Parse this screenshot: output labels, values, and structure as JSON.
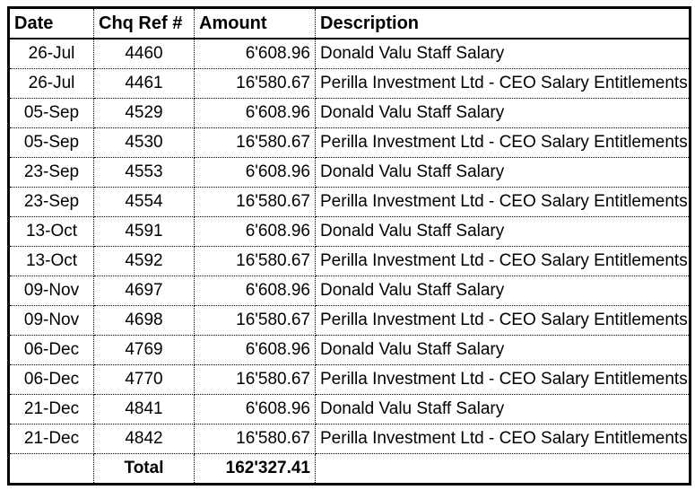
{
  "table": {
    "headers": {
      "date": "Date",
      "chq_ref": "Chq Ref #",
      "amount": "Amount",
      "description": "Description"
    },
    "rows": [
      {
        "date": "26-Jul",
        "chq_ref": "4460",
        "amount": "6'608.96",
        "description": "Donald Valu Staff Salary"
      },
      {
        "date": "26-Jul",
        "chq_ref": "4461",
        "amount": "16'580.67",
        "description": "Perilla Investment Ltd - CEO Salary Entitlements"
      },
      {
        "date": "05-Sep",
        "chq_ref": "4529",
        "amount": "6'608.96",
        "description": "Donald Valu Staff Salary"
      },
      {
        "date": "05-Sep",
        "chq_ref": "4530",
        "amount": "16'580.67",
        "description": "Perilla Investment Ltd - CEO Salary Entitlements"
      },
      {
        "date": "23-Sep",
        "chq_ref": "4553",
        "amount": "6'608.96",
        "description": "Donald Valu Staff Salary"
      },
      {
        "date": "23-Sep",
        "chq_ref": "4554",
        "amount": "16'580.67",
        "description": "Perilla Investment Ltd - CEO Salary Entitlements"
      },
      {
        "date": "13-Oct",
        "chq_ref": "4591",
        "amount": "6'608.96",
        "description": "Donald Valu Staff Salary"
      },
      {
        "date": "13-Oct",
        "chq_ref": "4592",
        "amount": "16'580.67",
        "description": "Perilla Investment Ltd - CEO Salary Entitlements"
      },
      {
        "date": "09-Nov",
        "chq_ref": "4697",
        "amount": "6'608.96",
        "description": "Donald Valu Staff Salary"
      },
      {
        "date": "09-Nov",
        "chq_ref": "4698",
        "amount": "16'580.67",
        "description": "Perilla Investment Ltd - CEO Salary Entitlements"
      },
      {
        "date": "06-Dec",
        "chq_ref": "4769",
        "amount": "6'608.96",
        "description": "Donald Valu Staff Salary"
      },
      {
        "date": "06-Dec",
        "chq_ref": "4770",
        "amount": "16'580.67",
        "description": "Perilla Investment Ltd - CEO Salary Entitlements"
      },
      {
        "date": "21-Dec",
        "chq_ref": "4841",
        "amount": "6'608.96",
        "description": "Donald Valu Staff Salary"
      },
      {
        "date": "21-Dec",
        "chq_ref": "4842",
        "amount": "16'580.67",
        "description": "Perilla Investment Ltd - CEO Salary Entitlements"
      }
    ],
    "total": {
      "label": "Total",
      "amount": "162'327.41"
    }
  },
  "colors": {
    "border": "#000000",
    "text": "#000000",
    "background": "#ffffff"
  }
}
